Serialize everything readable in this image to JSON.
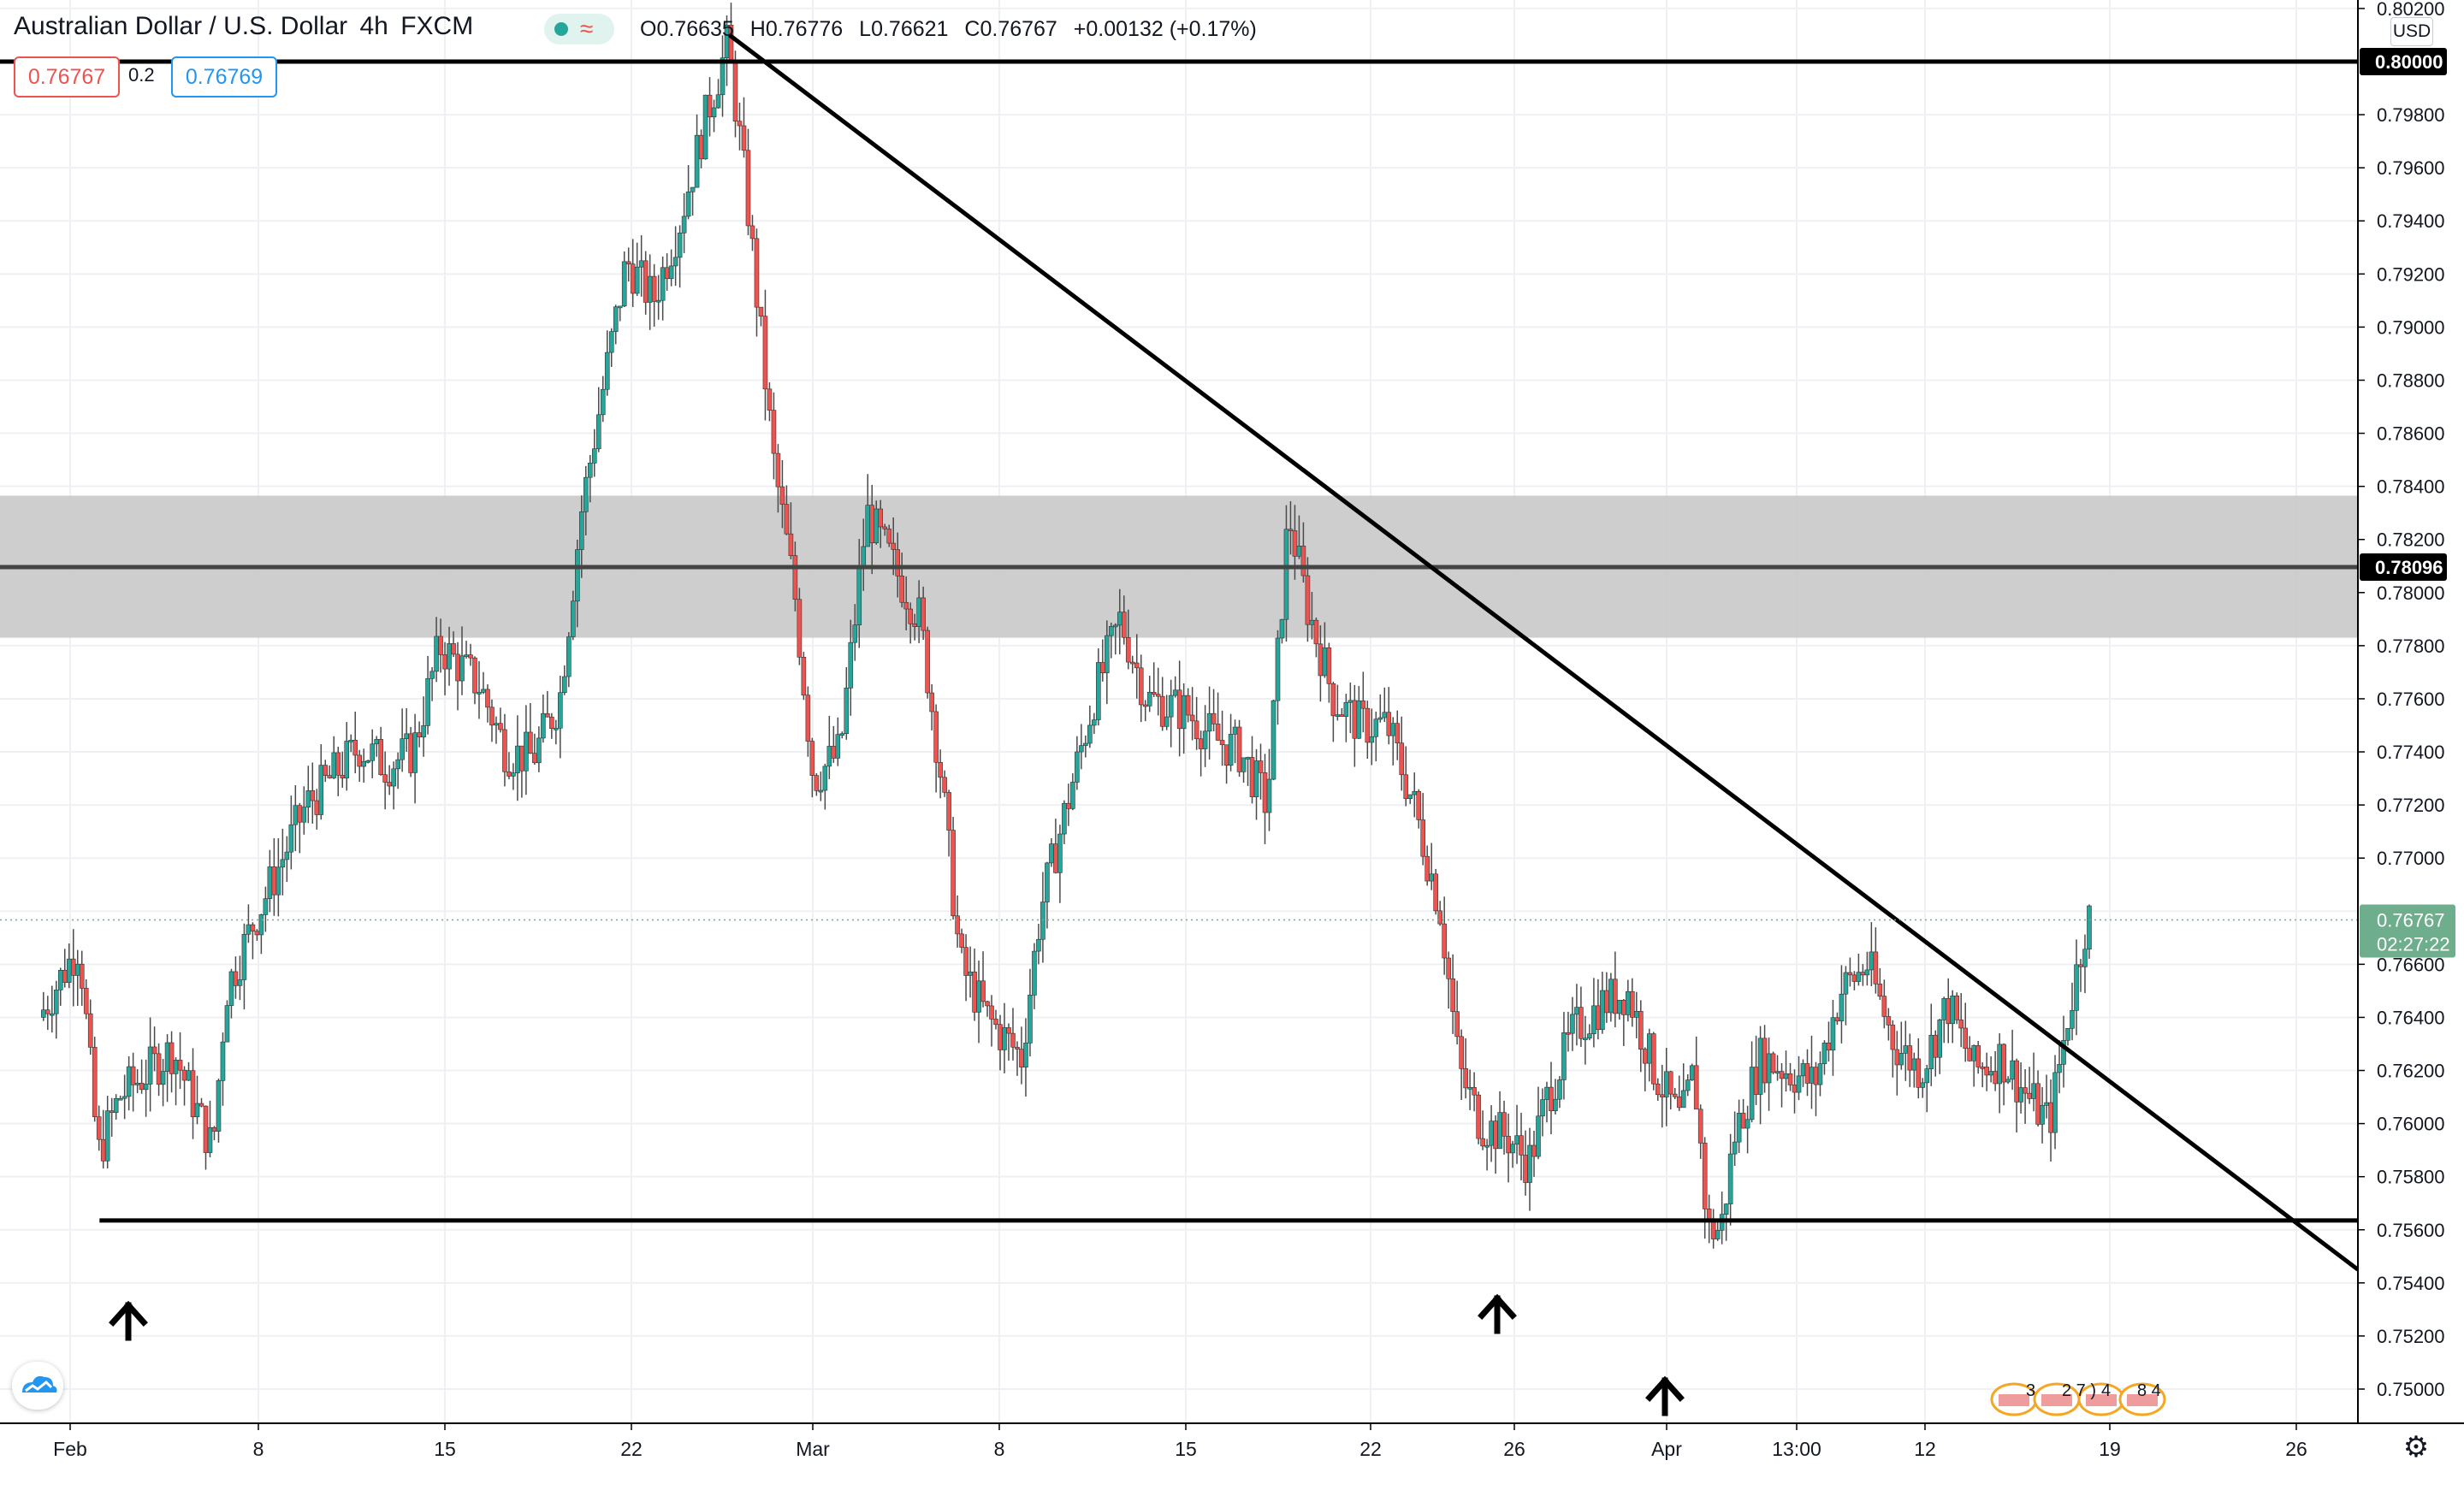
{
  "header": {
    "symbol": "Australian Dollar / U.S. Dollar",
    "interval": "4h",
    "exchange": "FXCM",
    "ohlc": {
      "open_label": "O",
      "open": "0.76635",
      "high_label": "H",
      "high": "0.76776",
      "low_label": "L",
      "low": "0.76621",
      "close_label": "C",
      "close": "0.76767",
      "change": "+0.00132 (+0.17%)"
    },
    "status_icon": "wave-icon"
  },
  "trade": {
    "sell_price": "0.76767",
    "spread": "0.2",
    "buy_price": "0.76769"
  },
  "price_axis": {
    "currency": "USD",
    "labels": [
      "0.80200",
      "0.79800",
      "0.79600",
      "0.79400",
      "0.79200",
      "0.79000",
      "0.78800",
      "0.78600",
      "0.78400",
      "0.78200",
      "0.78000",
      "0.77800",
      "0.77600",
      "0.77400",
      "0.77200",
      "0.77000",
      "0.76600",
      "0.76400",
      "0.76200",
      "0.76000",
      "0.75800",
      "0.75600",
      "0.75400",
      "0.75200",
      "0.75000"
    ],
    "highlight_top": "0.80000",
    "highlight_mid": "0.78096",
    "last_price": "0.76767",
    "countdown": "02:27:22"
  },
  "time_axis": {
    "labels": [
      "Feb",
      "8",
      "15",
      "22",
      "Mar",
      "8",
      "15",
      "22",
      "26",
      "Apr",
      "13:00",
      "12",
      "19",
      "26"
    ]
  },
  "events": {
    "first_group": "3",
    "second_group": "2 7 )",
    "third_group": "4",
    "fourth_group": "8 4"
  },
  "colors": {
    "up": "#26a69a",
    "down": "#ef5350",
    "zone": "#c9c9c9",
    "last_price_bg": "#6fae8c",
    "line": "#000000"
  },
  "chart_data": {
    "type": "candlestick",
    "symbol": "AUDUSD",
    "interval": "4h",
    "ylim": [
      0.749,
      0.8022
    ],
    "annotations": {
      "horizontal_lines": [
        0.8,
        0.78096,
        0.75635
      ],
      "zone": [
        0.7783,
        0.78365
      ],
      "trendline": {
        "from": {
          "date": "2021-02-26",
          "price": 0.801
        },
        "to": {
          "date": "2021-04-27",
          "price": 0.7545
        }
      },
      "arrows": [
        "Feb 2",
        "Feb 25",
        "Apr 1"
      ]
    },
    "key_points": [
      {
        "date": "Feb 2",
        "close": 0.7575
      },
      {
        "date": "Feb 25",
        "high": 0.8007
      },
      {
        "date": "Mar 3",
        "close": 0.783
      },
      {
        "date": "Mar 9",
        "low": 0.762
      },
      {
        "date": "Mar 18",
        "high": 0.7849
      },
      {
        "date": "Mar 25",
        "low": 0.7565
      },
      {
        "date": "Apr 1",
        "low": 0.7532
      },
      {
        "date": "Apr 15",
        "close": 0.76767
      }
    ]
  }
}
